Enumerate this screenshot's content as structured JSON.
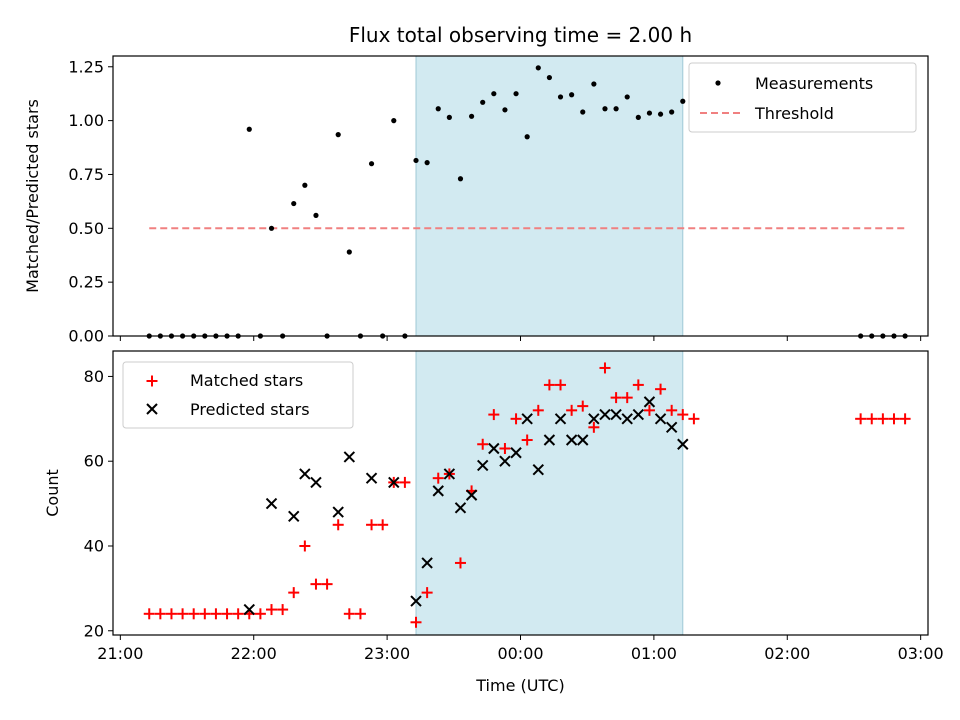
{
  "chart_data": [
    {
      "type": "scatter",
      "title": "Flux total observing time = 2.00 h",
      "xlabel": "",
      "ylabel": "Matched/Predicted stars",
      "xlim": [
        "21:00",
        "03:00"
      ],
      "ylim": [
        0,
        1.3
      ],
      "yticks": [
        "0.00",
        "0.25",
        "0.50",
        "0.75",
        "1.00",
        "1.25"
      ],
      "highlight_span": {
        "from": "23:13",
        "to": "01:13",
        "color": "#add8e6"
      },
      "legend": {
        "position": "top-right",
        "entries": [
          "Measurements",
          "Threshold"
        ]
      },
      "series": [
        {
          "name": "Measurements",
          "style": "dot",
          "color": "#000000",
          "points": [
            [
              "21:13",
              0
            ],
            [
              "21:18",
              0
            ],
            [
              "21:23",
              0
            ],
            [
              "21:28",
              0
            ],
            [
              "21:33",
              0
            ],
            [
              "21:38",
              0
            ],
            [
              "21:43",
              0
            ],
            [
              "21:48",
              0
            ],
            [
              "21:53",
              0
            ],
            [
              "21:58",
              0.96
            ],
            [
              "22:03",
              0
            ],
            [
              "22:08",
              0.5
            ],
            [
              "22:13",
              0
            ],
            [
              "22:18",
              0.615
            ],
            [
              "22:23",
              0.7
            ],
            [
              "22:28",
              0.56
            ],
            [
              "22:33",
              0
            ],
            [
              "22:38",
              0.935
            ],
            [
              "22:43",
              0.39
            ],
            [
              "22:48",
              0
            ],
            [
              "22:53",
              0.8
            ],
            [
              "22:58",
              0
            ],
            [
              "23:03",
              1.0
            ],
            [
              "23:08",
              0
            ],
            [
              "23:13",
              0.815
            ],
            [
              "23:18",
              0.805
            ],
            [
              "23:23",
              1.055
            ],
            [
              "23:28",
              1.015
            ],
            [
              "23:33",
              0.73
            ],
            [
              "23:38",
              1.02
            ],
            [
              "23:43",
              1.085
            ],
            [
              "23:48",
              1.125
            ],
            [
              "23:53",
              1.05
            ],
            [
              "23:58",
              1.125
            ],
            [
              "00:03",
              0.925
            ],
            [
              "00:08",
              1.245
            ],
            [
              "00:13",
              1.2
            ],
            [
              "00:18",
              1.11
            ],
            [
              "00:23",
              1.12
            ],
            [
              "00:28",
              1.04
            ],
            [
              "00:33",
              1.17
            ],
            [
              "00:38",
              1.055
            ],
            [
              "00:43",
              1.055
            ],
            [
              "00:48",
              1.11
            ],
            [
              "00:53",
              1.015
            ],
            [
              "00:58",
              1.035
            ],
            [
              "01:03",
              1.03
            ],
            [
              "01:08",
              1.04
            ],
            [
              "01:13",
              1.09
            ],
            [
              "02:33",
              0
            ],
            [
              "02:38",
              0
            ],
            [
              "02:43",
              0
            ],
            [
              "02:48",
              0
            ],
            [
              "02:53",
              0
            ]
          ]
        },
        {
          "name": "Threshold",
          "style": "dashed-line",
          "color": "#f08080",
          "points": [
            [
              "21:13",
              0.5
            ],
            [
              "02:53",
              0.5
            ]
          ]
        }
      ]
    },
    {
      "type": "scatter",
      "title": "",
      "xlabel": "Time (UTC)",
      "ylabel": "Count",
      "xlim": [
        "21:00",
        "03:00"
      ],
      "ylim": [
        19,
        86
      ],
      "xticks": [
        "21:00",
        "22:00",
        "23:00",
        "00:00",
        "01:00",
        "02:00",
        "03:00"
      ],
      "yticks": [
        "20",
        "40",
        "60",
        "80"
      ],
      "highlight_span": {
        "from": "23:13",
        "to": "01:13",
        "color": "#add8e6"
      },
      "legend": {
        "position": "top-left",
        "entries": [
          "Matched stars",
          "Predicted stars"
        ]
      },
      "series": [
        {
          "name": "Matched stars",
          "style": "plus",
          "color": "#ff0000",
          "points": [
            [
              "21:13",
              24
            ],
            [
              "21:18",
              24
            ],
            [
              "21:23",
              24
            ],
            [
              "21:28",
              24
            ],
            [
              "21:33",
              24
            ],
            [
              "21:38",
              24
            ],
            [
              "21:43",
              24
            ],
            [
              "21:48",
              24
            ],
            [
              "21:53",
              24
            ],
            [
              "21:58",
              24
            ],
            [
              "22:03",
              24
            ],
            [
              "22:08",
              25
            ],
            [
              "22:13",
              25
            ],
            [
              "22:18",
              29
            ],
            [
              "22:23",
              40
            ],
            [
              "22:28",
              31
            ],
            [
              "22:33",
              31
            ],
            [
              "22:38",
              45
            ],
            [
              "22:43",
              24
            ],
            [
              "22:48",
              24
            ],
            [
              "22:53",
              45
            ],
            [
              "22:58",
              45
            ],
            [
              "23:03",
              55
            ],
            [
              "23:08",
              55
            ],
            [
              "23:13",
              22
            ],
            [
              "23:18",
              29
            ],
            [
              "23:23",
              56
            ],
            [
              "23:28",
              57
            ],
            [
              "23:33",
              36
            ],
            [
              "23:38",
              53
            ],
            [
              "23:43",
              64
            ],
            [
              "23:48",
              71
            ],
            [
              "23:53",
              63
            ],
            [
              "23:58",
              70
            ],
            [
              "00:03",
              65
            ],
            [
              "00:08",
              72
            ],
            [
              "00:13",
              78
            ],
            [
              "00:18",
              78
            ],
            [
              "00:23",
              72
            ],
            [
              "00:28",
              73
            ],
            [
              "00:33",
              68
            ],
            [
              "00:38",
              82
            ],
            [
              "00:43",
              75
            ],
            [
              "00:48",
              75
            ],
            [
              "00:53",
              78
            ],
            [
              "00:58",
              72
            ],
            [
              "01:03",
              77
            ],
            [
              "01:08",
              72
            ],
            [
              "01:13",
              71
            ],
            [
              "01:18",
              70
            ],
            [
              "02:33",
              70
            ],
            [
              "02:38",
              70
            ],
            [
              "02:43",
              70
            ],
            [
              "02:48",
              70
            ],
            [
              "02:53",
              70
            ]
          ]
        },
        {
          "name": "Predicted stars",
          "style": "cross",
          "color": "#000000",
          "points": [
            [
              "21:58",
              25
            ],
            [
              "22:08",
              50
            ],
            [
              "22:18",
              47
            ],
            [
              "22:23",
              57
            ],
            [
              "22:28",
              55
            ],
            [
              "22:38",
              48
            ],
            [
              "22:43",
              61
            ],
            [
              "22:53",
              56
            ],
            [
              "23:03",
              55
            ],
            [
              "23:13",
              27
            ],
            [
              "23:18",
              36
            ],
            [
              "23:23",
              53
            ],
            [
              "23:28",
              57
            ],
            [
              "23:33",
              49
            ],
            [
              "23:38",
              52
            ],
            [
              "23:43",
              59
            ],
            [
              "23:48",
              63
            ],
            [
              "23:53",
              60
            ],
            [
              "23:58",
              62
            ],
            [
              "00:03",
              70
            ],
            [
              "00:08",
              58
            ],
            [
              "00:13",
              65
            ],
            [
              "00:18",
              70
            ],
            [
              "00:23",
              65
            ],
            [
              "00:28",
              65
            ],
            [
              "00:33",
              70
            ],
            [
              "00:38",
              71
            ],
            [
              "00:43",
              71
            ],
            [
              "00:48",
              70
            ],
            [
              "00:53",
              71
            ],
            [
              "00:58",
              74
            ],
            [
              "01:03",
              70
            ],
            [
              "01:08",
              68
            ],
            [
              "01:13",
              64
            ]
          ]
        }
      ]
    }
  ]
}
